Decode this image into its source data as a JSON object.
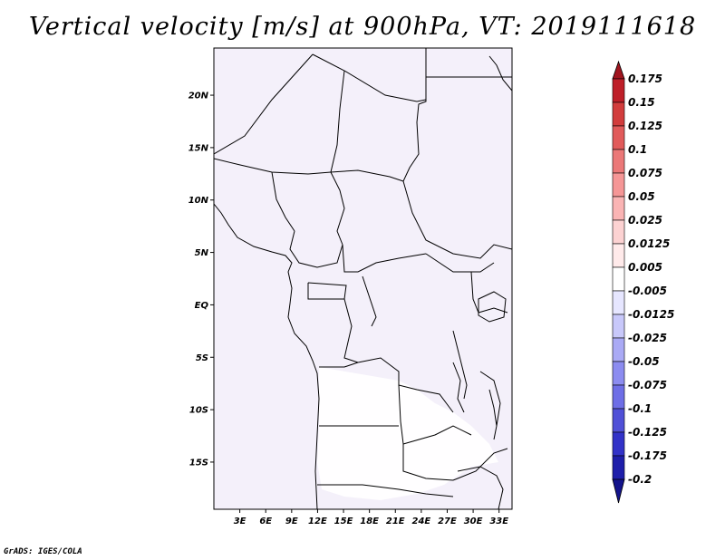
{
  "title": "Vertical velocity [m/s] at 900hPa, VT: 2019111618",
  "footer": "GrADS: IGES/COLA",
  "map": {
    "lat_range": [
      -19.5,
      24.5
    ],
    "lon_range": [
      0,
      34.5
    ],
    "lat_ticks": [
      {
        "value": 20,
        "label": "20N"
      },
      {
        "value": 15,
        "label": "15N"
      },
      {
        "value": 10,
        "label": "10N"
      },
      {
        "value": 5,
        "label": "5N"
      },
      {
        "value": 0,
        "label": "EQ"
      },
      {
        "value": -5,
        "label": "5S"
      },
      {
        "value": -10,
        "label": "10S"
      },
      {
        "value": -15,
        "label": "15S"
      }
    ],
    "lon_ticks": [
      {
        "value": 3,
        "label": "3E"
      },
      {
        "value": 6,
        "label": "6E"
      },
      {
        "value": 9,
        "label": "9E"
      },
      {
        "value": 12,
        "label": "12E"
      },
      {
        "value": 15,
        "label": "15E"
      },
      {
        "value": 18,
        "label": "18E"
      },
      {
        "value": 21,
        "label": "21E"
      },
      {
        "value": 24,
        "label": "24E"
      },
      {
        "value": 27,
        "label": "27E"
      },
      {
        "value": 30,
        "label": "30E"
      },
      {
        "value": 33,
        "label": "33E"
      }
    ]
  },
  "colorbar": {
    "labels": [
      "0.175",
      "0.15",
      "0.125",
      "0.1",
      "0.075",
      "0.05",
      "0.025",
      "0.0125",
      "0.005",
      "-0.005",
      "-0.0125",
      "-0.025",
      "-0.05",
      "-0.075",
      "-0.1",
      "-0.125",
      "-0.175",
      "-0.2"
    ],
    "colors": [
      "#a0141e",
      "#be1e28",
      "#d23c3c",
      "#e15a5a",
      "#eb7878",
      "#f59696",
      "#fab4b4",
      "#fcd2d2",
      "#ffeaea",
      "#ffffff",
      "#e6e6ff",
      "#c8c8fa",
      "#aaaaf5",
      "#8c8cf0",
      "#6e6ee6",
      "#5050d7",
      "#3232c8",
      "#1e1eaa",
      "#14148c"
    ]
  }
}
